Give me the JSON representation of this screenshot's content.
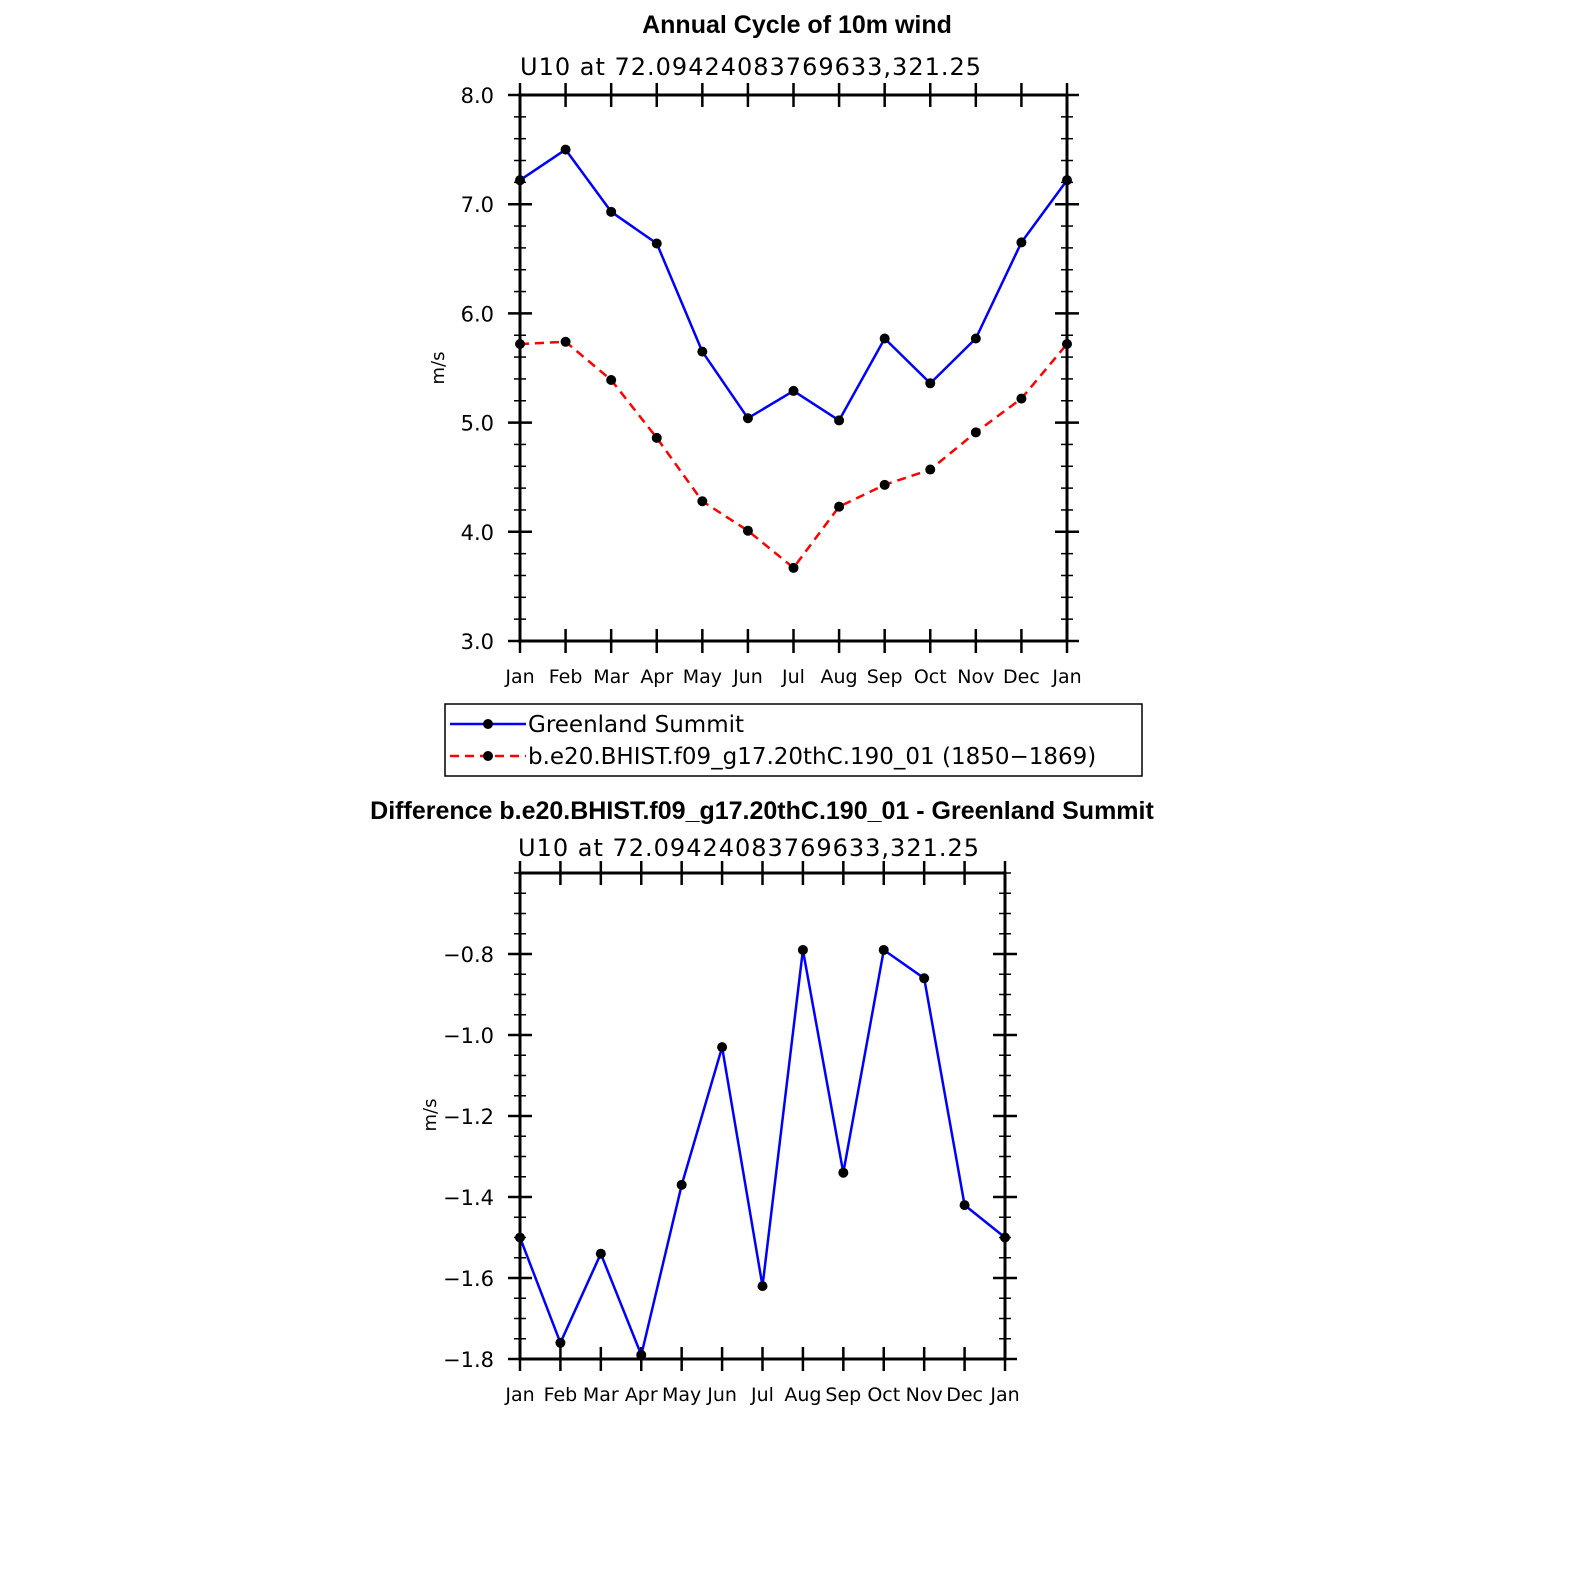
{
  "chart_data": [
    {
      "type": "line",
      "title": "Annual Cycle of 10m wind",
      "subtitle": "U10 at 72.09424083769633,321.25",
      "ylabel": "m/s",
      "xlabel": "",
      "ylim": [
        3.0,
        8.0
      ],
      "yticks": [
        3.0,
        4.0,
        5.0,
        6.0,
        7.0,
        8.0
      ],
      "ytick_labels": [
        "3.0",
        "4.0",
        "5.0",
        "6.0",
        "7.0",
        "8.0"
      ],
      "categories": [
        "Jan",
        "Feb",
        "Mar",
        "Apr",
        "May",
        "Jun",
        "Jul",
        "Aug",
        "Sep",
        "Oct",
        "Nov",
        "Dec",
        "Jan"
      ],
      "series": [
        {
          "name": "Greenland Summit",
          "color": "#0000ff",
          "dash": "solid",
          "values": [
            7.22,
            7.5,
            6.93,
            6.64,
            5.65,
            5.04,
            5.29,
            5.02,
            5.77,
            5.36,
            5.77,
            6.65,
            7.22
          ]
        },
        {
          "name": "b.e20.BHIST.f09_g17.20thC.190_01 (1850−1869)",
          "color": "#ff0000",
          "dash": "dashed",
          "values": [
            5.72,
            5.74,
            5.39,
            4.86,
            4.28,
            4.01,
            3.67,
            4.23,
            4.43,
            4.57,
            4.91,
            5.22,
            5.72
          ]
        }
      ],
      "legend": "below"
    },
    {
      "type": "line",
      "title": "Difference b.e20.BHIST.f09_g17.20thC.190_01 - Greenland Summit",
      "subtitle": "U10 at 72.09424083769633,321.25",
      "ylabel": "m/s",
      "xlabel": "",
      "ylim": [
        -1.8,
        -0.6
      ],
      "yticks": [
        -1.8,
        -1.6,
        -1.4,
        -1.2,
        -1.0,
        -0.8
      ],
      "ytick_labels": [
        "−1.8",
        "−1.6",
        "−1.4",
        "−1.2",
        "−1.0",
        "−0.8"
      ],
      "categories": [
        "Jan",
        "Feb",
        "Mar",
        "Apr",
        "May",
        "Jun",
        "Jul",
        "Aug",
        "Sep",
        "Oct",
        "Nov",
        "Dec",
        "Jan"
      ],
      "series": [
        {
          "name": "Difference",
          "color": "#0000ff",
          "dash": "solid",
          "values": [
            -1.5,
            -1.76,
            -1.54,
            -1.79,
            -1.37,
            -1.03,
            -1.62,
            -0.79,
            -1.34,
            -0.79,
            -0.86,
            -1.42,
            -1.5
          ]
        }
      ]
    }
  ]
}
